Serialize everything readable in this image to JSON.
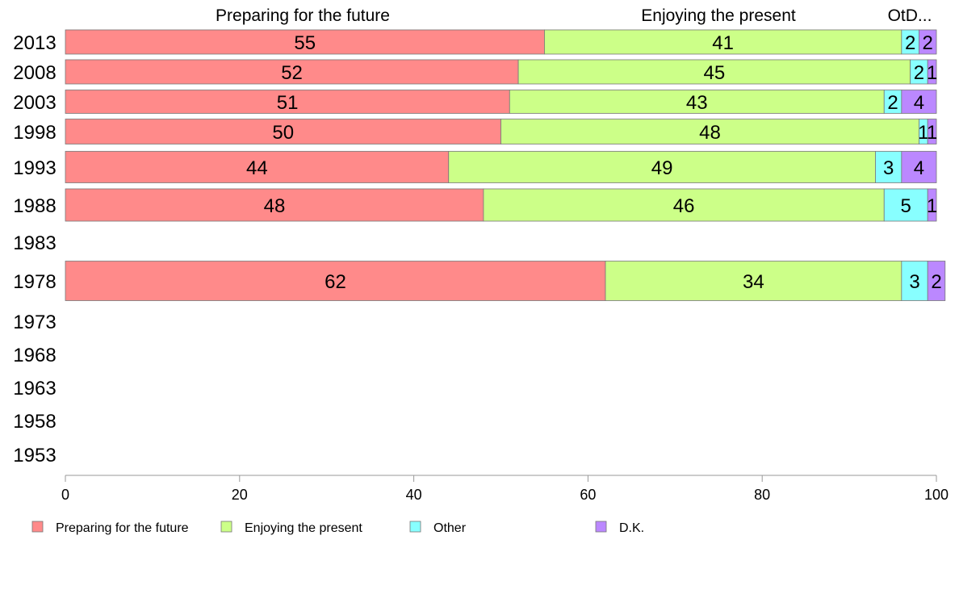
{
  "chart_data": {
    "type": "bar",
    "orientation": "horizontal",
    "stacked": true,
    "series_headers": [
      "Preparing for the future",
      "Enjoying the present",
      "OtD..."
    ],
    "categories": [
      "2013",
      "2008",
      "2003",
      "1998",
      "1993",
      "1988",
      "1983",
      "1978",
      "1973",
      "1968",
      "1963",
      "1958",
      "1953"
    ],
    "series": [
      {
        "name": "Preparing for the future",
        "color": "#ff8a8a",
        "values": [
          55,
          52,
          51,
          50,
          44,
          48,
          null,
          62,
          null,
          null,
          null,
          null,
          null
        ]
      },
      {
        "name": "Enjoying the present",
        "color": "#ccff88",
        "values": [
          41,
          45,
          43,
          48,
          49,
          46,
          null,
          34,
          null,
          null,
          null,
          null,
          null
        ]
      },
      {
        "name": "Other",
        "color": "#88ffff",
        "values": [
          2,
          2,
          2,
          1,
          3,
          5,
          null,
          3,
          null,
          null,
          null,
          null,
          null
        ]
      },
      {
        "name": "D.K.",
        "color": "#bb88ff",
        "values": [
          2,
          1,
          4,
          1,
          4,
          1,
          null,
          2,
          null,
          null,
          null,
          null,
          null
        ]
      }
    ],
    "xlim": [
      0,
      100
    ],
    "xticks": [
      0,
      20,
      40,
      60,
      80,
      100
    ],
    "legend_position": "bottom-left",
    "grid": false
  }
}
